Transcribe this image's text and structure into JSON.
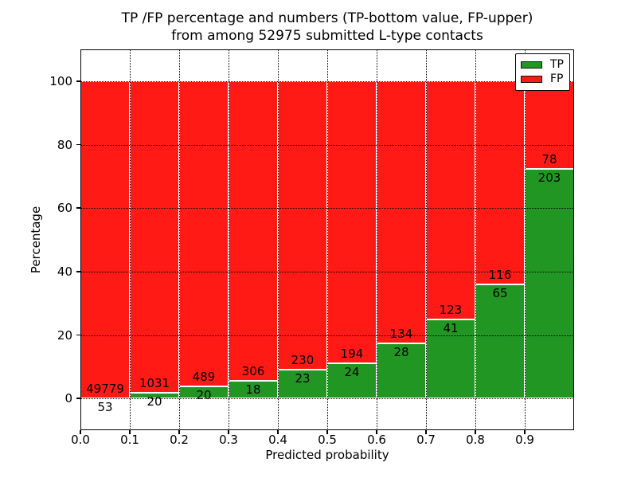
{
  "chart_data": {
    "type": "bar",
    "variant": "stacked-percentage-histogram",
    "title_line1": "TP /FP percentage and numbers (TP-bottom value, FP-upper)",
    "title_line2": "from among 52975 submitted L-type contacts",
    "xlabel": "Predicted probability",
    "ylabel": "Percentage",
    "xlim": [
      0.0,
      1.0
    ],
    "ylim": [
      -10,
      110
    ],
    "xticks": [
      0.0,
      0.1,
      0.2,
      0.3,
      0.4,
      0.5,
      0.6,
      0.7,
      0.8,
      0.9
    ],
    "xtick_labels": [
      "0.0",
      "0.1",
      "0.2",
      "0.3",
      "0.4",
      "0.5",
      "0.6",
      "0.7",
      "0.8",
      "0.9"
    ],
    "yticks": [
      0,
      20,
      40,
      60,
      80,
      100
    ],
    "ytick_labels": [
      "0",
      "20",
      "40",
      "60",
      "80",
      "100"
    ],
    "grid": {
      "style": "dotted",
      "color": "#000000"
    },
    "colors": {
      "tp": "#229622",
      "fp": "#ff1a15"
    },
    "legend": {
      "position": "upper-right",
      "entries": [
        {
          "label": "TP",
          "color": "#229622"
        },
        {
          "label": "FP",
          "color": "#ff1a15"
        }
      ]
    },
    "bins": [
      {
        "x_start": 0.0,
        "x_end": 0.1,
        "tp": 53,
        "fp": 49779,
        "tp_percent": 0.11
      },
      {
        "x_start": 0.1,
        "x_end": 0.2,
        "tp": 20,
        "fp": 1031,
        "tp_percent": 1.9
      },
      {
        "x_start": 0.2,
        "x_end": 0.3,
        "tp": 20,
        "fp": 489,
        "tp_percent": 3.93
      },
      {
        "x_start": 0.3,
        "x_end": 0.4,
        "tp": 18,
        "fp": 306,
        "tp_percent": 5.56
      },
      {
        "x_start": 0.4,
        "x_end": 0.5,
        "tp": 23,
        "fp": 230,
        "tp_percent": 9.09
      },
      {
        "x_start": 0.5,
        "x_end": 0.6,
        "tp": 24,
        "fp": 194,
        "tp_percent": 11.01
      },
      {
        "x_start": 0.6,
        "x_end": 0.7,
        "tp": 28,
        "fp": 134,
        "tp_percent": 17.28
      },
      {
        "x_start": 0.7,
        "x_end": 0.8,
        "tp": 41,
        "fp": 123,
        "tp_percent": 25.0
      },
      {
        "x_start": 0.8,
        "x_end": 0.9,
        "tp": 65,
        "fp": 116,
        "tp_percent": 35.91
      },
      {
        "x_start": 0.9,
        "x_end": 1.0,
        "tp": 203,
        "fp": 78,
        "tp_percent": 72.24
      }
    ]
  }
}
